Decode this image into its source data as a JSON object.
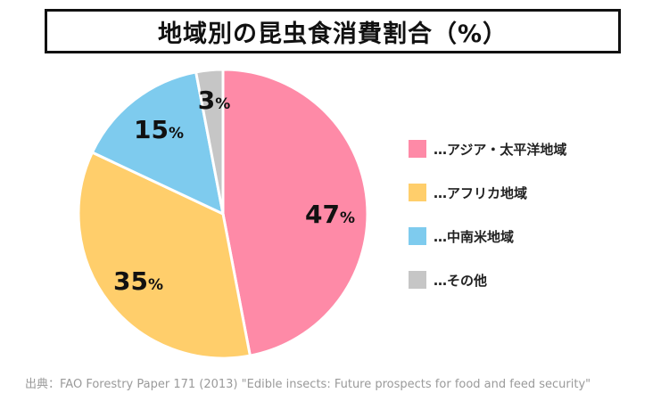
{
  "title": "地域別の昆虫食消費割合（%）",
  "chart_data": {
    "type": "pie",
    "title": "地域別の昆虫食消費割合（%）",
    "slices": [
      {
        "name": "アジア・太平洋地域",
        "value": 47,
        "color": "#fe8aa7",
        "label": "47",
        "unit": "%",
        "legend": "…アジア・太平洋地域"
      },
      {
        "name": "アフリカ地域",
        "value": 35,
        "color": "#ffce6b",
        "label": "35",
        "unit": "%",
        "legend": "…アフリカ地域"
      },
      {
        "name": "中南米地域",
        "value": 15,
        "color": "#7ecbee",
        "label": "15",
        "unit": "%",
        "legend": "…中南米地域"
      },
      {
        "name": "その他",
        "value": 3,
        "color": "#c6c6c6",
        "label": "3",
        "unit": "%",
        "legend": "…その他"
      }
    ],
    "legend_position": "right"
  },
  "source": "出典：FAO Forestry Paper 171 (2013) \"Edible insects: Future prospects for food and feed security\""
}
